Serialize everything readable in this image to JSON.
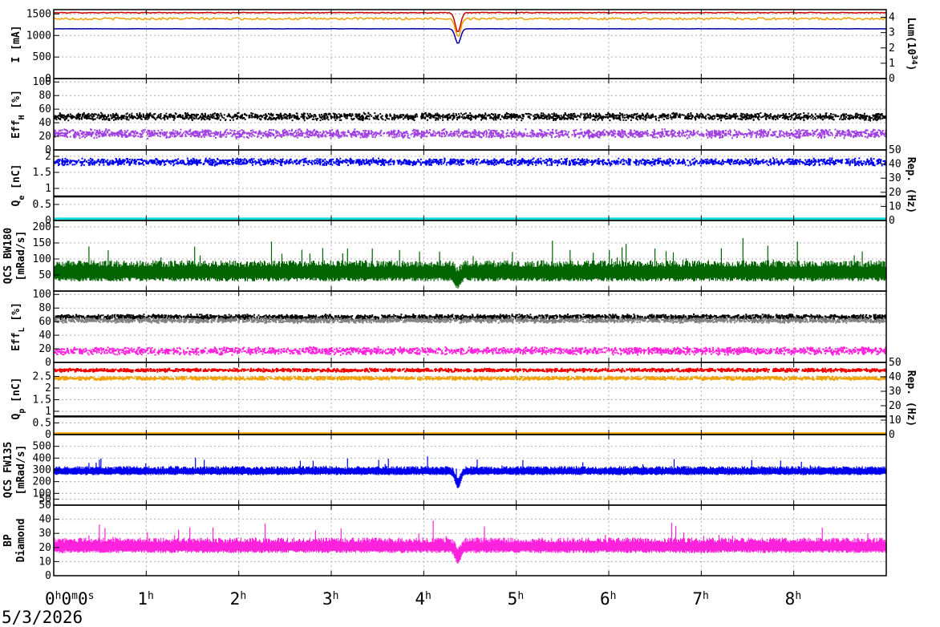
{
  "chart_data": {
    "type": "line",
    "date_label": "5/3/2026",
    "x_range_hours": [
      0,
      9
    ],
    "x_ticks": [
      {
        "hour": 0,
        "label": "0",
        "sup": "h",
        "extra": "0m0s"
      },
      {
        "hour": 1,
        "label": "1",
        "sup": "h"
      },
      {
        "hour": 2,
        "label": "2",
        "sup": "h"
      },
      {
        "hour": 3,
        "label": "3",
        "sup": "h"
      },
      {
        "hour": 4,
        "label": "4",
        "sup": "h"
      },
      {
        "hour": 5,
        "label": "5",
        "sup": "h"
      },
      {
        "hour": 6,
        "label": "6",
        "sup": "h"
      },
      {
        "hour": 7,
        "label": "7",
        "sup": "h"
      },
      {
        "hour": 8,
        "label": "8",
        "sup": "h"
      }
    ],
    "grid": true,
    "panels": [
      {
        "id": "current",
        "ylabel": "I [mA]",
        "ylim": [
          0,
          1600
        ],
        "yticks": [
          0,
          500,
          1000,
          1500
        ],
        "right_ylabel": "Lum(10^34)",
        "right_ylim": [
          0,
          4.5
        ],
        "right_yticks": [
          0,
          1,
          2,
          3,
          4
        ],
        "series": [
          {
            "color": "#cc0000",
            "style": "line",
            "base": 1530,
            "noise": 8
          },
          {
            "color": "#f0a000",
            "style": "line",
            "base": 1390,
            "noise": 25
          },
          {
            "color": "#0000aa",
            "style": "line",
            "base": 1155,
            "noise": 2
          }
        ]
      },
      {
        "id": "eff_h",
        "ylabel": "Eff_H [%]",
        "ylim": [
          0,
          105
        ],
        "yticks": [
          0,
          20,
          40,
          60,
          80,
          100
        ],
        "series": [
          {
            "color": "#000000",
            "style": "dots",
            "base": 50,
            "noise": 6
          },
          {
            "color": "#a040e0",
            "style": "dots",
            "base": 25,
            "noise": 7
          }
        ]
      },
      {
        "id": "qe",
        "ylabel": "Q_e [nC]",
        "ylim": [
          0,
          2.2
        ],
        "yticks": [
          0,
          0.5,
          1,
          1.5,
          2
        ],
        "right_ylabel": "Rep. (Hz)",
        "right_ylim": [
          0,
          50
        ],
        "right_yticks": [
          0,
          10,
          20,
          30,
          40,
          50
        ],
        "series": [
          {
            "color": "#0000ee",
            "style": "dots",
            "base": 1.85,
            "noise": 0.12
          },
          {
            "color": "#000000",
            "style": "line",
            "base": 0.75,
            "noise": 0
          },
          {
            "color": "#00dddd",
            "style": "line",
            "base": 0.06,
            "noise": 0
          }
        ]
      },
      {
        "id": "qcs_bw",
        "ylabel": "QCS BW180",
        "ylabel2": "[mRad/s]",
        "ylim": [
          0,
          220
        ],
        "yticks": [
          50,
          100,
          150,
          200
        ],
        "series": [
          {
            "color": "#006400",
            "style": "noise",
            "base": 60,
            "noise": 30
          }
        ]
      },
      {
        "id": "eff_l",
        "ylabel": "Eff_L [%]",
        "ylim": [
          0,
          105
        ],
        "yticks": [
          0,
          20,
          40,
          60,
          80,
          100
        ],
        "series": [
          {
            "color": "#000000",
            "style": "dots",
            "base": 68,
            "noise": 4
          },
          {
            "color": "#808080",
            "style": "dots",
            "base": 63,
            "noise": 4
          },
          {
            "color": "#ff22dd",
            "style": "dots",
            "base": 18,
            "noise": 6
          }
        ]
      },
      {
        "id": "qp",
        "ylabel": "Q_p [nC]",
        "ylim": [
          0,
          3.1
        ],
        "yticks": [
          0,
          0.5,
          1,
          1.5,
          2,
          2.5
        ],
        "right_ylabel": "Rep. (Hz)",
        "right_ylim": [
          0,
          50
        ],
        "right_yticks": [
          0,
          10,
          20,
          30,
          40,
          50
        ],
        "series": [
          {
            "color": "#ee0000",
            "style": "dots",
            "base": 2.8,
            "noise": 0.08
          },
          {
            "color": "#f0a000",
            "style": "dots",
            "base": 2.45,
            "noise": 0.08
          },
          {
            "color": "#000000",
            "style": "line",
            "base": 0.78,
            "noise": 0
          },
          {
            "color": "#f0a000",
            "style": "line",
            "base": 0.05,
            "noise": 0
          }
        ]
      },
      {
        "id": "qcs_fw",
        "ylabel": "QCS FW135",
        "ylabel2": "[mRad/s]",
        "ylim": [
          0,
          600
        ],
        "yticks": [
          50,
          100,
          200,
          300,
          400,
          500
        ],
        "series": [
          {
            "color": "#0000ee",
            "style": "noise",
            "base": 290,
            "noise": 35
          }
        ]
      },
      {
        "id": "bp_diamond",
        "ylabel": "BP",
        "ylabel2": "Diamond",
        "ylim": [
          0,
          50
        ],
        "yticks": [
          0,
          10,
          20,
          30,
          40,
          50
        ],
        "series": [
          {
            "color": "#ff22dd",
            "style": "noise",
            "base": 21,
            "noise": 5
          }
        ]
      }
    ]
  }
}
